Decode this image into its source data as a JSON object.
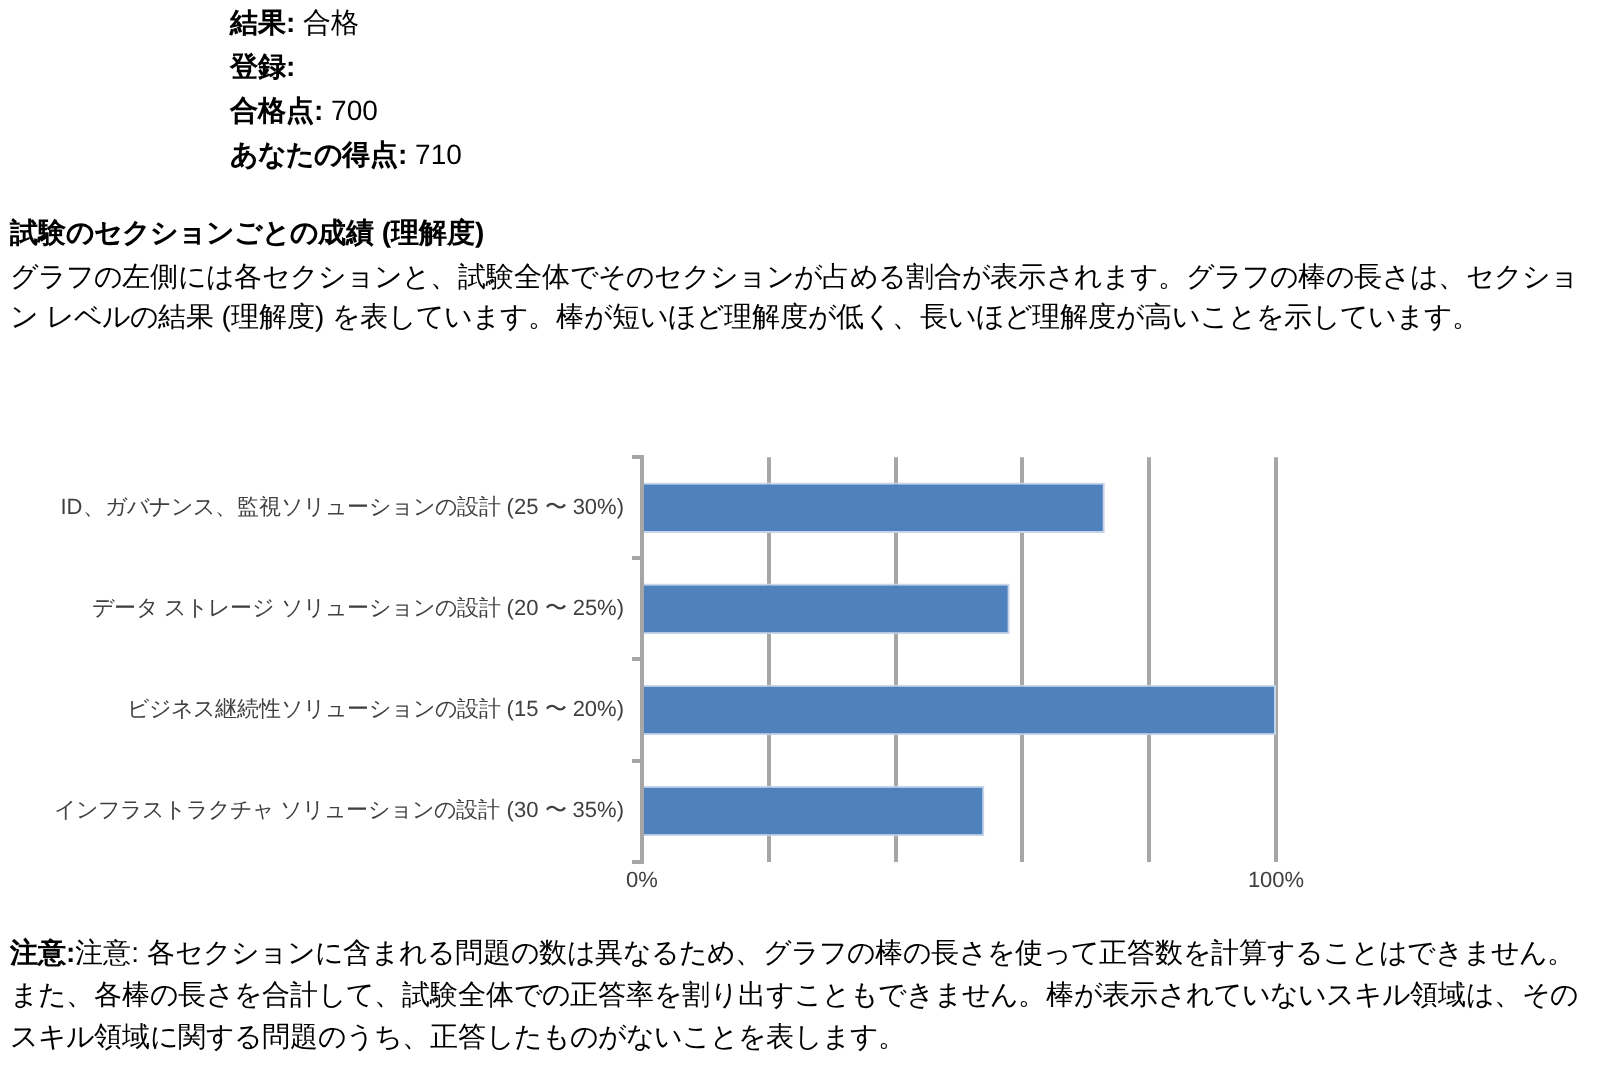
{
  "chart_data": {
    "type": "bar",
    "orientation": "horizontal",
    "title": "試験のセクションごとの成績 (理解度)",
    "subtitle": "グラフの左側には各セクションと、試験全体でそのセクションが占める割合が表示されます。グラフの棒の長さは、セクション レベルの結果 (理解度) を表しています。棒が短いほど理解度が低く、長いほど理解度が高いことを示しています。",
    "annotations": [
      "結果:  合格",
      "登録:",
      "合格点:  700",
      "あなたの得点:  710",
      "注意:注意: 各セクションに含まれる問題の数は異なるため、グラフの棒の長さを使って正答数を計算することはできません。また、各棒の長さを合計して、試験全体での正答率を割り出すこともできません。棒が表示されていないスキル領域は、そのスキル領域に関する問題のうち、正答したものがないことを表します。"
    ],
    "categories": [
      "ID、ガバナンス、監視ソリューションの設計 (25 〜 30%)",
      "データ ストレージ ソリューションの設計 (20 〜 25%)",
      "ビジネス継続性ソリューションの設計 (15 〜 20%)",
      "インフラストラクチャ ソリューションの設計 (30 〜 35%)"
    ],
    "values": [
      73,
      58,
      100,
      54
    ],
    "color": "#4f81bd",
    "xlim": [
      0,
      100
    ],
    "xticks": [
      {
        "value": 0,
        "label": "0%"
      },
      {
        "value": 20,
        "label": null
      },
      {
        "value": 40,
        "label": null
      },
      {
        "value": 60,
        "label": null
      },
      {
        "value": 80,
        "label": null
      },
      {
        "value": 100,
        "label": "100%"
      }
    ],
    "grid": "x",
    "legend": false
  }
}
